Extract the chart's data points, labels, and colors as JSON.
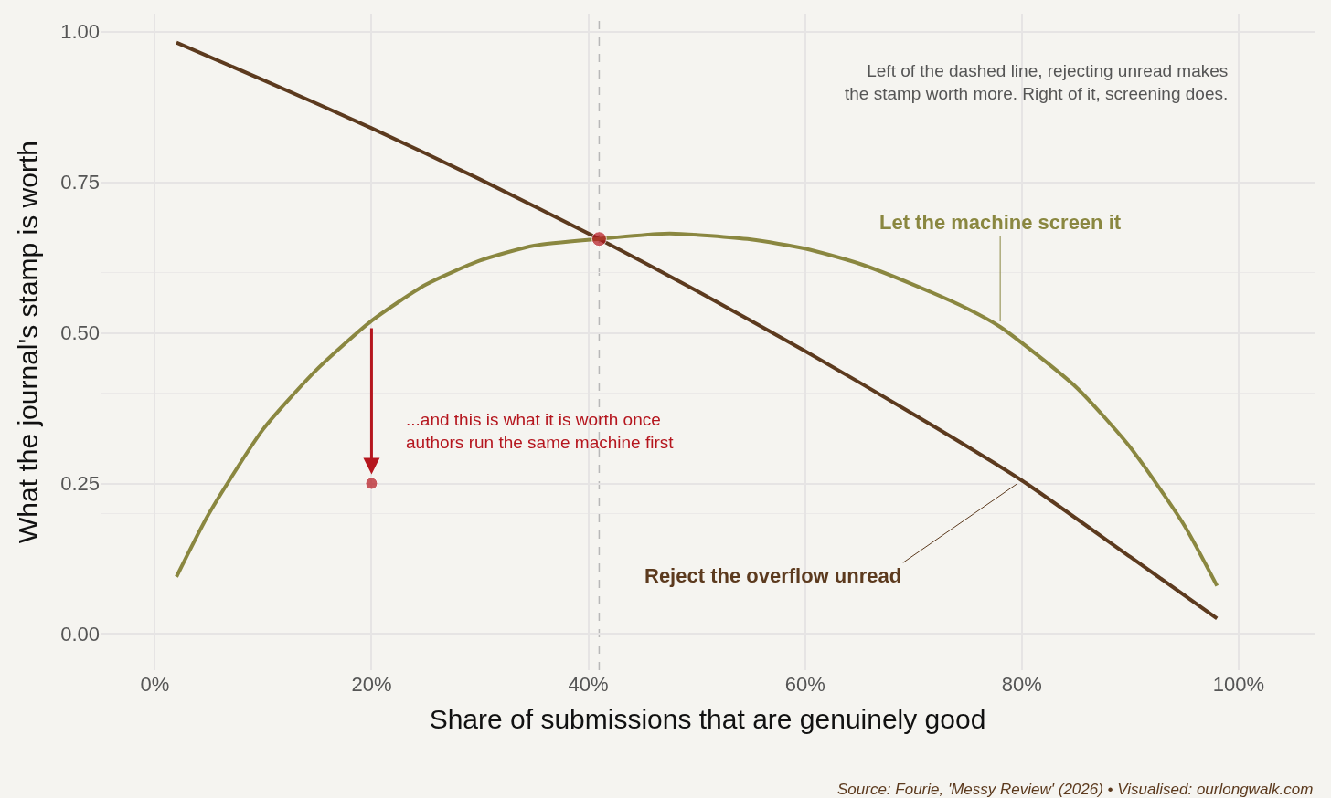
{
  "chart_data": {
    "type": "line",
    "xlabel": "Share of submissions that are genuinely good",
    "ylabel": "What the journal's stamp is worth",
    "xlim": [
      -5,
      107
    ],
    "xticks": [
      {
        "value": 0,
        "label": "0%"
      },
      {
        "value": 20,
        "label": "20%"
      },
      {
        "value": 40,
        "label": "40%"
      },
      {
        "value": 60,
        "label": "60%"
      },
      {
        "value": 80,
        "label": "80%"
      },
      {
        "value": 100,
        "label": "100%"
      }
    ],
    "ylim": [
      -0.06,
      1.03
    ],
    "yticks": [
      {
        "value": 0,
        "label": "0.00"
      },
      {
        "value": 0.25,
        "label": "0.25"
      },
      {
        "value": 0.5,
        "label": "0.50"
      },
      {
        "value": 0.75,
        "label": "0.75"
      },
      {
        "value": 1,
        "label": "1.00"
      }
    ],
    "grid": true,
    "legend": false,
    "series": [
      {
        "name": "Reject the overflow unread",
        "color": "#5c3a1e",
        "x": [
          2,
          10,
          20,
          30,
          41,
          50,
          60,
          70,
          80,
          90,
          98
        ],
        "values": [
          0.982,
          0.92,
          0.84,
          0.755,
          0.656,
          0.57,
          0.47,
          0.365,
          0.255,
          0.128,
          0.026
        ]
      },
      {
        "name": "Let the machine screen it",
        "color": "#8a8740",
        "x": [
          2,
          5,
          10,
          15,
          20,
          25,
          30,
          35,
          41,
          47.5,
          55,
          60,
          65,
          70,
          75,
          78,
          85,
          90,
          95,
          98
        ],
        "values": [
          0.095,
          0.2,
          0.34,
          0.44,
          0.52,
          0.58,
          0.62,
          0.645,
          0.656,
          0.665,
          0.655,
          0.64,
          0.615,
          0.58,
          0.54,
          0.51,
          0.41,
          0.31,
          0.18,
          0.08
        ]
      },
      {
        "type": "scatter",
        "color": "#b5161e",
        "x": [
          41,
          20
        ],
        "values": [
          0.656,
          0.25
        ]
      }
    ],
    "ref_lines": [
      {
        "axis": "x",
        "value": 41,
        "color": "#b8b8b8",
        "line_style": "dashed"
      }
    ],
    "annotations": [
      "Left of the dashed line, rejecting unread makes\nthe stamp worth more. Right of it, screening does.",
      "...and this is what it is worth once\nauthors run the same machine first",
      "Source: Fourie, 'Messy Review' (2026) • Visualised: ourlongwalk.com"
    ]
  }
}
